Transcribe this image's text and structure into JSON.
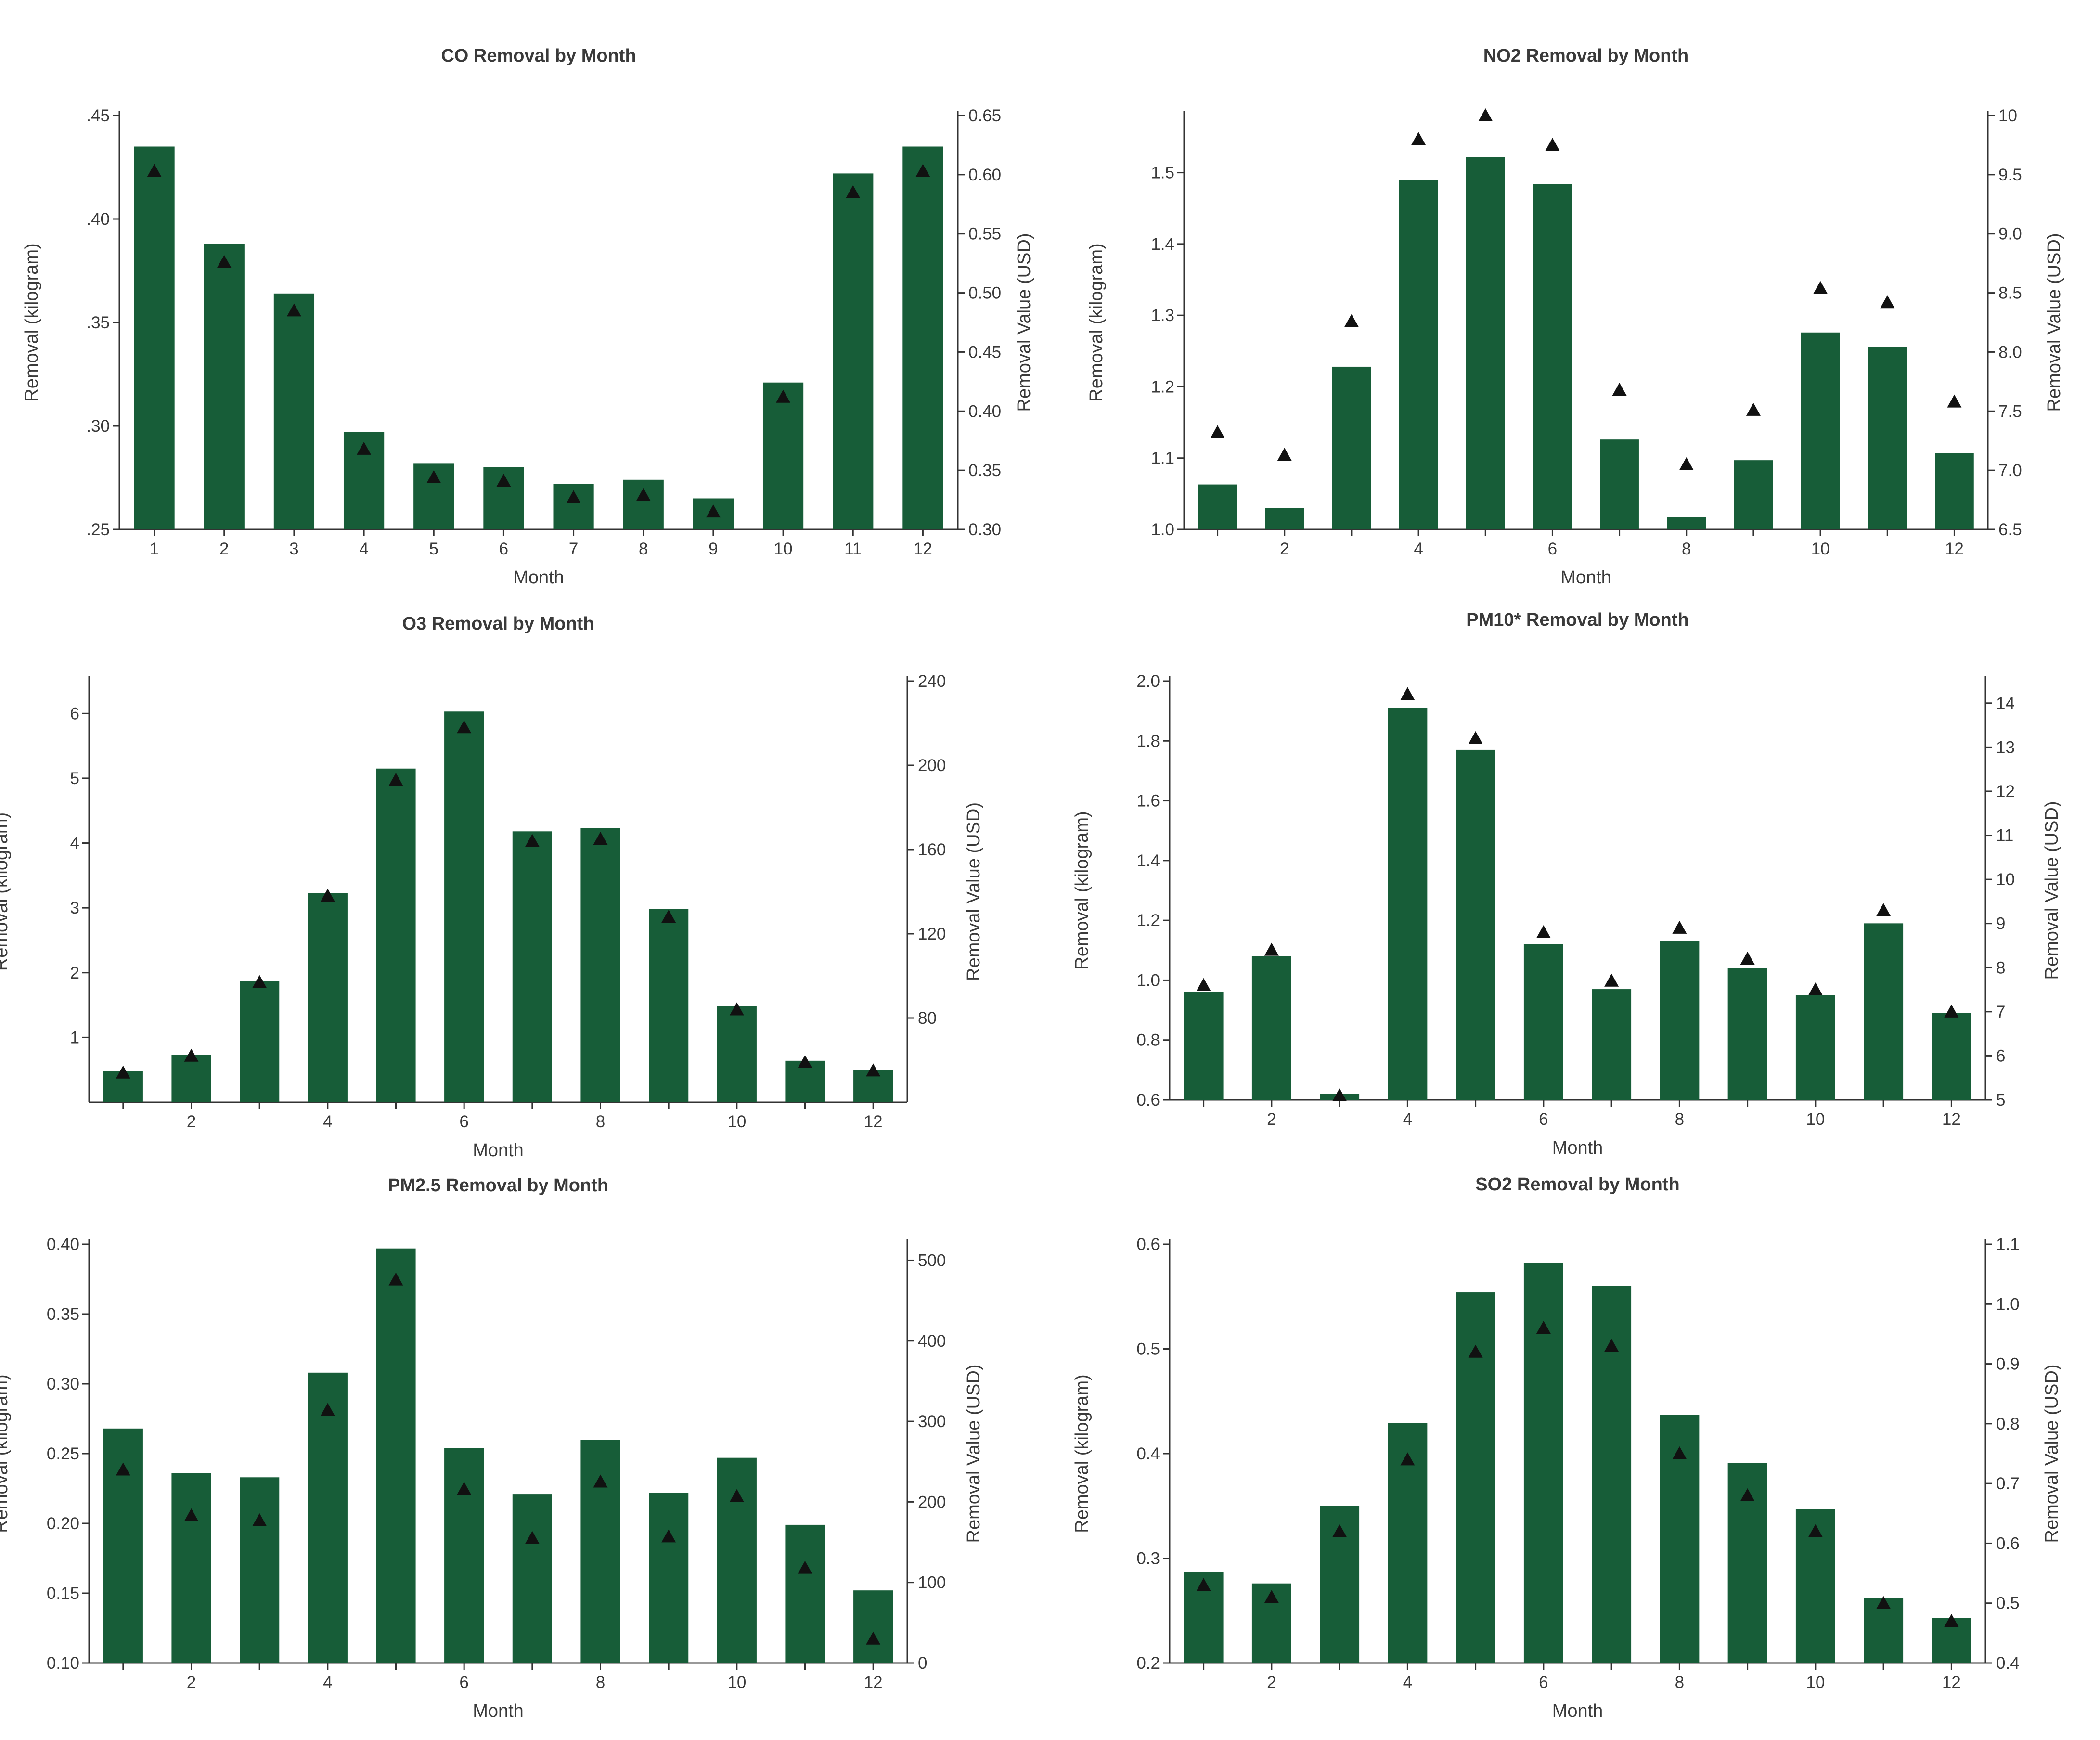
{
  "colors": {
    "bar": "#175d38",
    "marker": "#111111",
    "axis": "#333333",
    "text": "#3a3a3a"
  },
  "chart_data": [
    {
      "type": "bar",
      "title": "CO Removal by Month",
      "xlabel": "Month",
      "ylabel": "Removal  (kilogram)",
      "y2label": "Removal Value (USD)",
      "categories": [
        1,
        2,
        3,
        4,
        5,
        6,
        7,
        8,
        9,
        10,
        11,
        12
      ],
      "xtick_labels": [
        "1",
        "2",
        "3",
        "4",
        "5",
        "6",
        "7",
        "8",
        "9",
        "10",
        "11",
        "12"
      ],
      "ylim": [
        0.25,
        0.45
      ],
      "yticks": [
        0.25,
        0.3,
        0.35,
        0.4,
        0.45
      ],
      "ytick_labels": [
        ".25",
        ".30",
        ".35",
        ".40",
        ".45"
      ],
      "y2lim": [
        0.3,
        0.65
      ],
      "y2ticks": [
        0.3,
        0.35,
        0.4,
        0.45,
        0.5,
        0.55,
        0.6,
        0.65
      ],
      "y2tick_labels": [
        "0.30",
        "0.35",
        "0.40",
        "0.45",
        "0.50",
        "0.55",
        "0.60",
        "0.65"
      ],
      "series": [
        {
          "name": "Removal (kilogram)",
          "type": "bar",
          "axis": "left",
          "values": [
            0.435,
            0.388,
            0.364,
            0.297,
            0.282,
            0.28,
            0.272,
            0.274,
            0.265,
            0.321,
            0.422,
            0.435
          ]
        },
        {
          "name": "Removal Value (USD)",
          "type": "scatter",
          "marker": "triangle",
          "axis": "right",
          "values": [
            0.603,
            0.526,
            0.485,
            0.368,
            0.344,
            0.341,
            0.327,
            0.329,
            0.315,
            0.412,
            0.585,
            0.603
          ]
        }
      ]
    },
    {
      "type": "bar",
      "title": "NO2 Removal by Month",
      "xlabel": "Month",
      "ylabel": "Removal  (kilogram)",
      "y2label": "Removal Value (USD)",
      "categories": [
        1,
        2,
        3,
        4,
        5,
        6,
        7,
        8,
        9,
        10,
        11,
        12
      ],
      "xtick_labels": [
        "",
        "2",
        "",
        "4",
        "",
        "6",
        "",
        "8",
        "",
        "10",
        "",
        "12"
      ],
      "ylim": [
        1.0,
        1.58
      ],
      "yticks": [
        1.0,
        1.1,
        1.2,
        1.3,
        1.4,
        1.5
      ],
      "ytick_labels": [
        "1.0",
        "1.1",
        "1.2",
        "1.3",
        "1.4",
        "1.5"
      ],
      "y2lim": [
        6.5,
        10.0
      ],
      "y2ticks": [
        6.5,
        7.0,
        7.5,
        8.0,
        8.5,
        9.0,
        9.5,
        10.0
      ],
      "y2tick_labels": [
        "6.5",
        "7.0",
        "7.5",
        "8.0",
        "8.5",
        "9.0",
        "9.5",
        "10"
      ],
      "series": [
        {
          "name": "Removal (kilogram)",
          "type": "bar",
          "axis": "left",
          "values": [
            1.063,
            1.03,
            1.228,
            1.49,
            1.522,
            1.484,
            1.126,
            1.017,
            1.097,
            1.276,
            1.256,
            1.107
          ]
        },
        {
          "name": "Removal Value (USD)",
          "type": "scatter",
          "marker": "triangle",
          "axis": "right",
          "values": [
            7.32,
            7.13,
            8.26,
            9.8,
            10.0,
            9.75,
            7.68,
            7.05,
            7.51,
            8.54,
            8.42,
            7.58
          ]
        }
      ]
    },
    {
      "type": "bar",
      "title": "O3 Removal by Month",
      "xlabel": "Month",
      "ylabel": "Removal  (kilogram)",
      "y2label": "Removal Value (USD)",
      "categories": [
        1,
        2,
        3,
        4,
        5,
        6,
        7,
        8,
        9,
        10,
        11,
        12
      ],
      "xtick_labels": [
        "",
        "2",
        "",
        "4",
        "",
        "6",
        "",
        "8",
        "",
        "10",
        "",
        "12"
      ],
      "ylim": [
        0,
        6.5
      ],
      "yticks": [
        1,
        2,
        3,
        4,
        5,
        6
      ],
      "ytick_labels": [
        "1",
        "2",
        "3",
        "4",
        "5",
        "6"
      ],
      "y2lim": [
        40,
        240
      ],
      "y2ticks": [
        80,
        120,
        160,
        200,
        240
      ],
      "y2tick_labels": [
        "80",
        "120",
        "160",
        "200",
        "240"
      ],
      "series": [
        {
          "name": "Removal (kilogram)",
          "type": "bar",
          "axis": "left",
          "values": [
            0.48,
            0.73,
            1.87,
            3.23,
            5.15,
            6.03,
            4.18,
            4.23,
            2.98,
            1.48,
            0.64,
            0.5
          ]
        },
        {
          "name": "Removal Value (USD)",
          "type": "scatter",
          "marker": "triangle",
          "axis": "right",
          "values": [
            54,
            62,
            97,
            138,
            193,
            218,
            164,
            165,
            128,
            84,
            59,
            55
          ]
        }
      ]
    },
    {
      "type": "bar",
      "title": "PM10* Removal by Month",
      "xlabel": "Month",
      "ylabel": "Removal  (kilogram)",
      "y2label": "Removal Value (USD)",
      "categories": [
        1,
        2,
        3,
        4,
        5,
        6,
        7,
        8,
        9,
        10,
        11,
        12
      ],
      "xtick_labels": [
        "",
        "2",
        "",
        "4",
        "",
        "6",
        "",
        "8",
        "",
        "10",
        "",
        "12"
      ],
      "ylim": [
        0.6,
        2.0
      ],
      "yticks": [
        0.6,
        0.8,
        1.0,
        1.2,
        1.4,
        1.6,
        1.8,
        2.0
      ],
      "ytick_labels": [
        "0.6",
        "0.8",
        "1.0",
        "1.2",
        "1.4",
        "1.6",
        "1.8",
        "2.0"
      ],
      "y2lim": [
        5,
        14.5
      ],
      "y2ticks": [
        5,
        6,
        7,
        8,
        9,
        10,
        11,
        12,
        13,
        14
      ],
      "y2tick_labels": [
        "5",
        "6",
        "7",
        "8",
        "9",
        "10",
        "11",
        "12",
        "13",
        "14"
      ],
      "series": [
        {
          "name": "Removal (kilogram)",
          "type": "bar",
          "axis": "left",
          "values": [
            0.96,
            1.08,
            0.62,
            1.91,
            1.77,
            1.12,
            0.97,
            1.13,
            1.04,
            0.95,
            1.19,
            0.89
          ]
        },
        {
          "name": "Removal Value (USD)",
          "type": "scatter",
          "marker": "triangle",
          "axis": "right",
          "values": [
            7.6,
            8.4,
            5.1,
            14.2,
            13.2,
            8.8,
            7.7,
            8.9,
            8.2,
            7.5,
            9.3,
            7.0
          ]
        }
      ]
    },
    {
      "type": "bar",
      "title": "PM2.5 Removal by Month",
      "xlabel": "Month",
      "ylabel": "Removal  (kilogram)",
      "y2label": "Removal Value  (USD)",
      "categories": [
        1,
        2,
        3,
        4,
        5,
        6,
        7,
        8,
        9,
        10,
        11,
        12
      ],
      "xtick_labels": [
        "",
        "2",
        "",
        "4",
        "",
        "6",
        "",
        "8",
        "",
        "10",
        "",
        "12"
      ],
      "ylim": [
        0.1,
        0.4
      ],
      "yticks": [
        0.1,
        0.15,
        0.2,
        0.25,
        0.3,
        0.35,
        0.4
      ],
      "ytick_labels": [
        "0.10",
        "0.15",
        "0.20",
        "0.25",
        "0.30",
        "0.35",
        "0.40"
      ],
      "y2lim": [
        0,
        520
      ],
      "y2ticks": [
        0,
        100,
        200,
        300,
        400,
        500
      ],
      "y2tick_labels": [
        "0",
        "100",
        "200",
        "300",
        "400",
        "500"
      ],
      "series": [
        {
          "name": "Removal (kilogram)",
          "type": "bar",
          "axis": "left",
          "values": [
            0.268,
            0.236,
            0.233,
            0.308,
            0.397,
            0.254,
            0.221,
            0.26,
            0.222,
            0.247,
            0.199,
            0.152
          ]
        },
        {
          "name": "Removal Value (USD)",
          "type": "scatter",
          "marker": "triangle",
          "axis": "right",
          "values": [
            240,
            183,
            177,
            314,
            476,
            216,
            155,
            225,
            157,
            207,
            118,
            30
          ]
        }
      ]
    },
    {
      "type": "bar",
      "title": "SO2 Removal by Month",
      "xlabel": "Month",
      "ylabel": "Removal  (kilogram)",
      "y2label": "Removal Value (USD)",
      "categories": [
        1,
        2,
        3,
        4,
        5,
        6,
        7,
        8,
        9,
        10,
        11,
        12
      ],
      "xtick_labels": [
        "",
        "2",
        "",
        "4",
        "",
        "6",
        "",
        "8",
        "",
        "10",
        "",
        "12"
      ],
      "ylim": [
        0.2,
        0.6
      ],
      "yticks": [
        0.2,
        0.3,
        0.4,
        0.5,
        0.6
      ],
      "ytick_labels": [
        "0.2",
        "0.3",
        "0.4",
        "0.5",
        "0.6"
      ],
      "y2lim": [
        0.4,
        1.1
      ],
      "y2ticks": [
        0.4,
        0.5,
        0.6,
        0.7,
        0.8,
        0.9,
        1.0,
        1.1
      ],
      "y2tick_labels": [
        "0.4",
        "0.5",
        "0.6",
        "0.7",
        "0.8",
        "0.9",
        "1.0",
        "1.1"
      ],
      "series": [
        {
          "name": "Removal (kilogram)",
          "type": "bar",
          "axis": "left",
          "values": [
            0.287,
            0.276,
            0.35,
            0.429,
            0.554,
            0.582,
            0.56,
            0.437,
            0.391,
            0.347,
            0.262,
            0.243
          ]
        },
        {
          "name": "Removal Value (USD)",
          "type": "scatter",
          "marker": "triangle",
          "axis": "right",
          "values": [
            0.53,
            0.51,
            0.62,
            0.74,
            0.92,
            0.96,
            0.93,
            0.75,
            0.68,
            0.62,
            0.5,
            0.47
          ]
        }
      ]
    }
  ]
}
